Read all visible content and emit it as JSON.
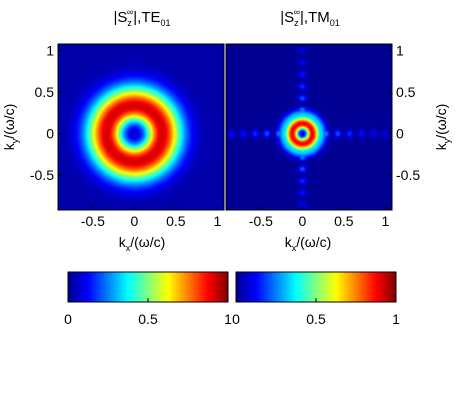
{
  "chart_data": [
    {
      "type": "heatmap",
      "title_parts": {
        "pre": "|S",
        "sub": "z",
        "sup": "∞",
        "post": "|,TE",
        "mode": "01"
      },
      "xlabel_parts": {
        "k": "k",
        "sub": "x",
        "post": "/(ω/c)"
      },
      "ylabel_parts": {
        "k": "k",
        "sub": "y",
        "post": "/(ω/c)"
      },
      "xlim": [
        -0.92,
        1.08
      ],
      "ylim": [
        -0.92,
        1.08
      ],
      "xticks": [
        -0.5,
        0,
        0.5,
        1
      ],
      "xtick_labels": [
        "-0.5",
        "0",
        "0.5",
        "1"
      ],
      "yticks": [
        -0.5,
        0,
        0.5,
        1
      ],
      "ytick_labels": [
        "-0.5",
        "0",
        "0.5",
        "1"
      ],
      "ylabel_side": "left",
      "colormap": "jet",
      "pattern": "ring",
      "ring_radius": 0.31,
      "ring_width": 0.18,
      "center_min": 0.15
    },
    {
      "type": "heatmap",
      "title_parts": {
        "pre": "|S",
        "sub": "z",
        "sup": "∞",
        "post": "|,TM",
        "mode": "01"
      },
      "xlabel_parts": {
        "k": "k",
        "sub": "x",
        "post": "/(ω/c)"
      },
      "ylabel_parts": {
        "k": "k",
        "sub": "y",
        "post": "/(ω/c)"
      },
      "xlim": [
        -0.92,
        1.08
      ],
      "ylim": [
        -0.92,
        1.08
      ],
      "xticks": [
        -0.5,
        0,
        0.5,
        1
      ],
      "xtick_labels": [
        "-0.5",
        "0",
        "0.5",
        "1"
      ],
      "yticks": [
        -0.5,
        0,
        0.5,
        1
      ],
      "ytick_labels": [
        "-0.5",
        "0",
        "0.5",
        "1"
      ],
      "ylabel_side": "right",
      "colormap": "jet",
      "pattern": "ring-with-side-lobes",
      "ring_radius": 0.11,
      "ring_width": 0.07,
      "center_min": 0.1
    }
  ],
  "colorbars": [
    {
      "min": 0,
      "max": 1,
      "ticks": [
        0,
        0.5,
        1
      ],
      "tick_labels": [
        "0",
        "0.5",
        "1"
      ]
    },
    {
      "min": 0,
      "max": 1,
      "ticks": [
        0,
        0.5,
        1
      ],
      "tick_labels": [
        "0",
        "0.5",
        "1"
      ]
    }
  ]
}
